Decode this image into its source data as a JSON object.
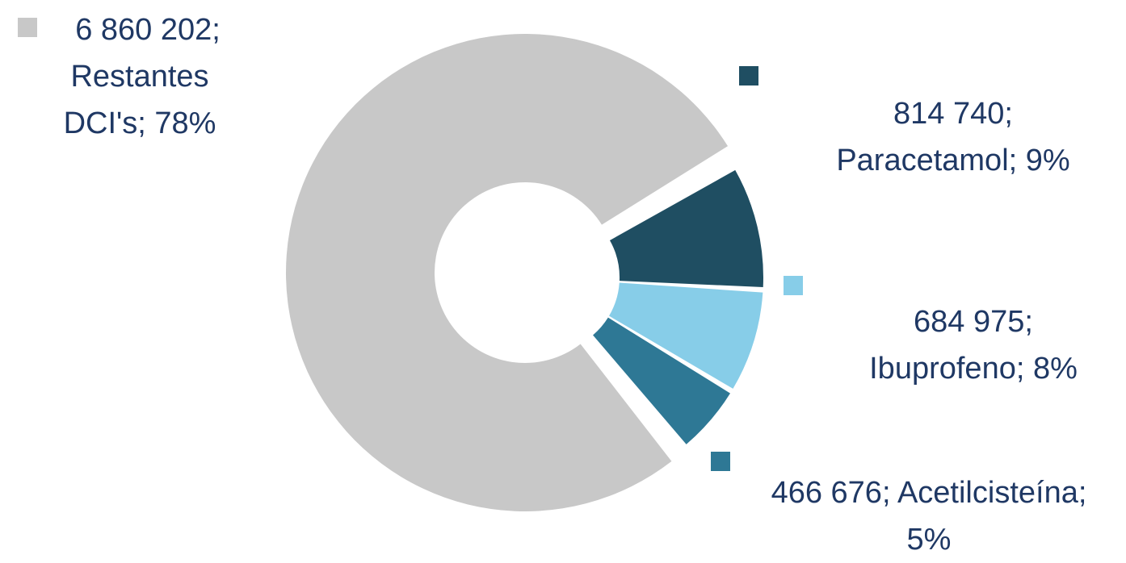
{
  "chart_data": {
    "type": "pie",
    "variant": "exploded-donut",
    "title": "",
    "series": [
      {
        "slices": [
          {
            "key": "paracetamol",
            "label": "Paracetamol",
            "value": 814740,
            "value_text": "814 740",
            "percent_text": "9%",
            "color": "#1f4e62"
          },
          {
            "key": "ibuprofeno",
            "label": "Ibuprofeno",
            "value": 684975,
            "value_text": "684 975",
            "percent_text": "8%",
            "color": "#87cde8"
          },
          {
            "key": "acetilcisteina",
            "label": "Acetilcisteína",
            "value": 466676,
            "value_text": "466 676",
            "percent_text": "5%",
            "color": "#2e7895"
          },
          {
            "key": "restantes",
            "label": "Restantes DCI's",
            "value": 6860202,
            "value_text": "6 860 202",
            "percent_text": "78%",
            "color": "#c8c8c8"
          }
        ]
      }
    ],
    "legend": "none",
    "data_label_text_color": "#1f3864"
  },
  "labels": {
    "restantes": {
      "line1": "6 860 202;",
      "line2": "Restantes",
      "line3": "DCI's; 78%"
    },
    "paracetamol": {
      "line1": "814 740;",
      "line2": "Paracetamol; 9%"
    },
    "ibuprofeno": {
      "line1": "684 975;",
      "line2": "Ibuprofeno; 8%"
    },
    "acetilcisteina": {
      "line1": "466 676; Acetilcisteína;",
      "line2": "5%"
    }
  }
}
